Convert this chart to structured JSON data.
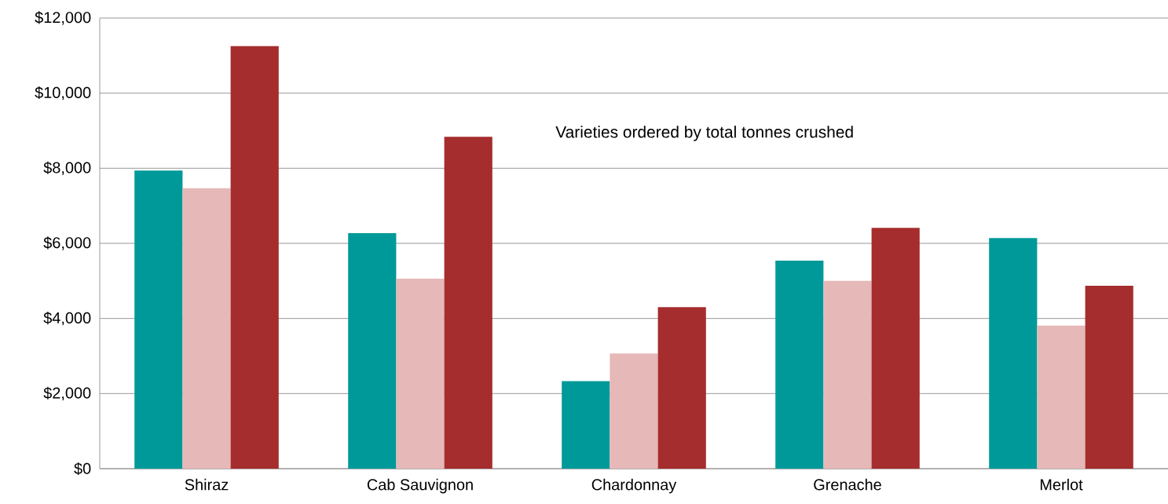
{
  "chart_data": {
    "type": "bar",
    "categories": [
      "Shiraz",
      "Cab Sauvignon",
      "Chardonnay",
      "Grenache",
      "Merlot"
    ],
    "series": [
      {
        "color": "#009999",
        "values": [
          7940,
          6270,
          2330,
          5540,
          6140
        ]
      },
      {
        "color": "#e6b8b7",
        "values": [
          7470,
          5060,
          3070,
          5000,
          3810
        ]
      },
      {
        "color": "#a52d2d",
        "values": [
          11250,
          8840,
          4300,
          6410,
          4870
        ]
      }
    ],
    "ylim": [
      0,
      12000
    ],
    "yticks": [
      {
        "value": 0,
        "label": "$0"
      },
      {
        "value": 2000,
        "label": "$2,000"
      },
      {
        "value": 4000,
        "label": "$4,000"
      },
      {
        "value": 6000,
        "label": "$6,000"
      },
      {
        "value": 8000,
        "label": "$8,000"
      },
      {
        "value": 10000,
        "label": "$10,000"
      },
      {
        "value": 12000,
        "label": "$12,000"
      }
    ],
    "grid": "y",
    "annotations": [
      "Varieties ordered by total tonnes crushed"
    ]
  }
}
